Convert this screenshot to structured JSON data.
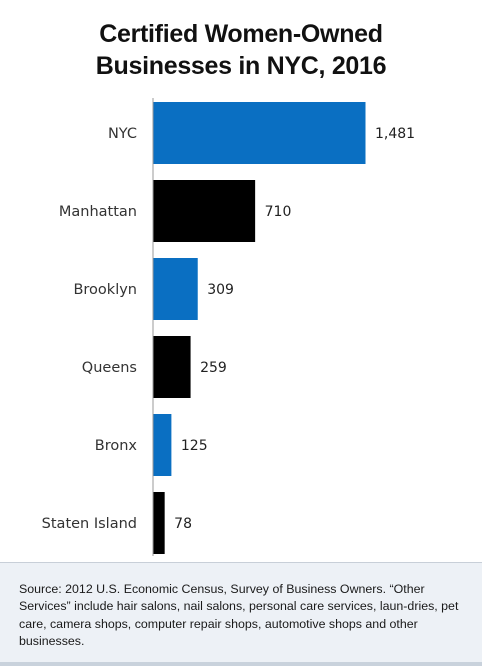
{
  "title_lines": [
    "Certified Women-Owned",
    "Businesses in NYC, 2016"
  ],
  "colors": {
    "blue": "#0a6fc2",
    "black": "#000000",
    "axis": "#9a9a9a",
    "label_text": "#333333",
    "source_bg": "#edf1f6"
  },
  "chart_data": {
    "type": "bar",
    "orientation": "horizontal",
    "title": "Certified Women-Owned Businesses in NYC, 2016",
    "categories": [
      "NYC",
      "Manhattan",
      "Brooklyn",
      "Queens",
      "Bronx",
      "Staten Island"
    ],
    "values": [
      1481,
      710,
      309,
      259,
      125,
      78
    ],
    "value_labels": [
      "1,481",
      "710",
      "309",
      "259",
      "125",
      "78"
    ],
    "bar_colors": [
      "blue",
      "black",
      "blue",
      "black",
      "blue",
      "black"
    ],
    "xlim": [
      0,
      1481
    ],
    "xlabel": "",
    "ylabel": "",
    "grid": false,
    "legend": "none"
  },
  "source": "Source: 2012 U.S. Economic Census, Survey of Business Owners. “Other Services” include hair salons, nail salons, personal care services, laun-dries, pet care, camera shops, computer repair shops, automotive shops and other businesses."
}
